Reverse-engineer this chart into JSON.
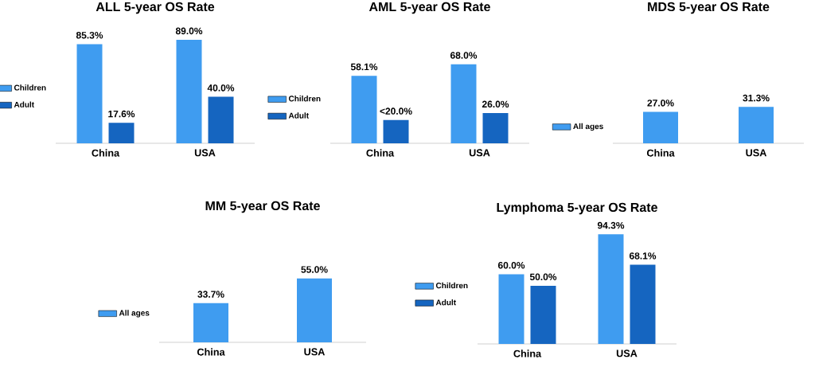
{
  "chart_data": [
    {
      "type": "bar",
      "title": "ALL 5-year OS Rate",
      "categories": [
        "China",
        "USA"
      ],
      "legend": "left",
      "series": [
        {
          "name": "Children",
          "color": "#3f9cf0",
          "values": [
            85.3,
            89.0
          ],
          "value_labels": [
            "85.3%",
            "89.0%"
          ]
        },
        {
          "name": "Adult",
          "color": "#1565c0",
          "values": [
            17.6,
            40.0
          ],
          "value_labels": [
            "17.6%",
            "40.0%"
          ]
        }
      ]
    },
    {
      "type": "bar",
      "title": "AML 5-year OS Rate",
      "categories": [
        "China",
        "USA"
      ],
      "legend": "left",
      "series": [
        {
          "name": "Children",
          "color": "#3f9cf0",
          "values": [
            58.1,
            68.0
          ],
          "value_labels": [
            "58.1%",
            "68.0%"
          ]
        },
        {
          "name": "Adult",
          "color": "#1565c0",
          "values": [
            20.0,
            26.0
          ],
          "value_labels": [
            "<20.0%",
            "26.0%"
          ]
        }
      ]
    },
    {
      "type": "bar",
      "title": "MDS 5-year OS Rate",
      "categories": [
        "China",
        "USA"
      ],
      "legend": "left",
      "series": [
        {
          "name": "All ages",
          "color": "#3f9cf0",
          "values": [
            27.0,
            31.3
          ],
          "value_labels": [
            "27.0%",
            "31.3%"
          ]
        }
      ]
    },
    {
      "type": "bar",
      "title": "MM 5-year OS Rate",
      "categories": [
        "China",
        "USA"
      ],
      "legend": "left",
      "series": [
        {
          "name": "All ages",
          "color": "#3f9cf0",
          "values": [
            33.7,
            55.0
          ],
          "value_labels": [
            "33.7%",
            "55.0%"
          ]
        }
      ]
    },
    {
      "type": "bar",
      "title": "Lymphoma 5-year OS Rate",
      "categories": [
        "China",
        "USA"
      ],
      "legend": "left",
      "series": [
        {
          "name": "Children",
          "color": "#3f9cf0",
          "values": [
            60.0,
            94.3
          ],
          "value_labels": [
            "60.0%",
            "94.3%"
          ]
        },
        {
          "name": "Adult",
          "color": "#1565c0",
          "values": [
            50.0,
            68.1
          ],
          "value_labels": [
            "50.0%",
            "68.1%"
          ]
        }
      ]
    }
  ]
}
